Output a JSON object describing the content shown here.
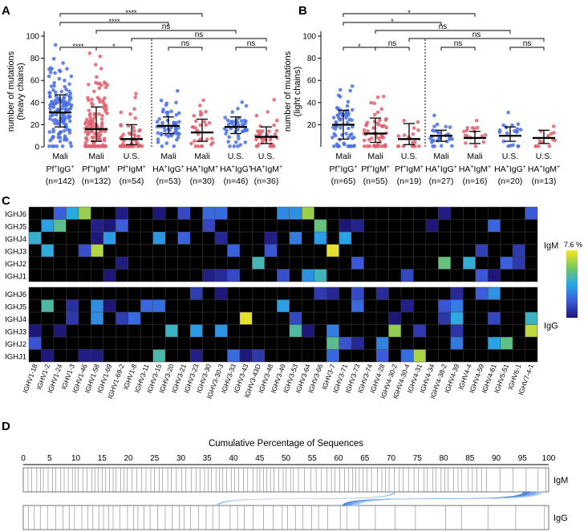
{
  "panels": {
    "A": "A",
    "B": "B",
    "C": "C",
    "D": "D"
  },
  "colors": {
    "blue": "#4a6fe3",
    "red": "#e0626f",
    "black": "#000000",
    "gray": "#7a7a7a"
  },
  "chart_data": [
    {
      "id": "A",
      "type": "scatter",
      "ylabel": "number of mutations",
      "ylabel2": "(heavy chains)",
      "ylim": [
        0,
        100
      ],
      "yticks": [
        "0",
        "20",
        "40",
        "60",
        "80",
        "100"
      ],
      "groups": [
        {
          "loc": "Mali",
          "type": "Pf+IgG+",
          "pre": "Pf",
          "sup1": "+",
          "mid": "IgG",
          "sup2": "+",
          "n": "(n=142)",
          "color": "blue",
          "median": 31,
          "q1": 18,
          "q3": 47
        },
        {
          "loc": "Mali",
          "type": "Pf+IgM+",
          "pre": "Pf",
          "sup1": "+",
          "mid": "IgM",
          "sup2": "+",
          "n": "(n=132)",
          "color": "red",
          "median": 16,
          "q1": 5,
          "q3": 36
        },
        {
          "loc": "U.S.",
          "type": "Pf+IgM+",
          "pre": "Pf",
          "sup1": "+",
          "mid": "IgM",
          "sup2": "+",
          "n": "(n=54)",
          "color": "red",
          "median": 7,
          "q1": 2,
          "q3": 20
        },
        {
          "loc": "Mali",
          "type": "HA+IgG+",
          "pre": "HA",
          "sup1": "+",
          "mid": "IgG",
          "sup2": "+",
          "n": "(n=53)",
          "color": "blue",
          "median": 19,
          "q1": 12,
          "q3": 27
        },
        {
          "loc": "Mali",
          "type": "HA+IgM+",
          "pre": "HA",
          "sup1": "+",
          "mid": "IgM",
          "sup2": "+",
          "n": "(n=30)",
          "color": "red",
          "median": 13,
          "q1": 5,
          "q3": 25
        },
        {
          "loc": "U.S.",
          "type": "HA+IgG+",
          "pre": "HA",
          "sup1": "+",
          "mid": "IgG",
          "sup2": "+",
          "n": "(n=46)",
          "color": "blue",
          "median": 18,
          "q1": 12,
          "q3": 27
        },
        {
          "loc": "U.S.",
          "type": "HA+IgM+",
          "pre": "HA",
          "sup1": "+",
          "mid": "IgM",
          "sup2": "+",
          "n": "(n=36)",
          "color": "red",
          "median": 9,
          "q1": 3,
          "q3": 18
        }
      ],
      "brackets": [
        {
          "from": 0,
          "to": 4,
          "label": "****",
          "level": 4
        },
        {
          "from": 0,
          "to": 3,
          "label": "****",
          "level": 3
        },
        {
          "from": 1,
          "to": 5,
          "label": "ns",
          "level": 2
        },
        {
          "from": 2,
          "to": 6,
          "label": "ns",
          "level": 1
        },
        {
          "from": 0,
          "to": 1,
          "label": "****",
          "level": 0
        },
        {
          "from": 1,
          "to": 2,
          "label": "*",
          "level": 0
        },
        {
          "from": 3,
          "to": 4,
          "label": "ns",
          "level": 0
        },
        {
          "from": 5,
          "to": 6,
          "label": "ns",
          "level": 0
        }
      ]
    },
    {
      "id": "B",
      "type": "scatter",
      "ylabel": "number of mutations",
      "ylabel2": "(light chains)",
      "ylim": [
        0,
        100
      ],
      "yticks": [
        "20",
        "40",
        "60",
        "80",
        "100"
      ],
      "groups": [
        {
          "loc": "Mali",
          "type": "Pf+IgG+",
          "pre": "Pf",
          "sup1": "+",
          "mid": "IgG",
          "sup2": "+",
          "n": "(n=65)",
          "color": "blue",
          "median": 20,
          "q1": 7,
          "q3": 33
        },
        {
          "loc": "Mali",
          "type": "Pf+IgM+",
          "pre": "Pf",
          "sup1": "+",
          "mid": "IgM",
          "sup2": "+",
          "n": "(n=55)",
          "color": "red",
          "median": 12,
          "q1": 4,
          "q3": 26
        },
        {
          "loc": "U.S.",
          "type": "Pf+IgM+",
          "pre": "Pf",
          "sup1": "+",
          "mid": "IgM",
          "sup2": "+",
          "n": "(n=19)",
          "color": "red",
          "median": 7,
          "q1": 2,
          "q3": 21
        },
        {
          "loc": "Mali",
          "type": "HA+IgG+",
          "pre": "HA",
          "sup1": "+",
          "mid": "IgG",
          "sup2": "+",
          "n": "(n=27)",
          "color": "blue",
          "median": 10,
          "q1": 5,
          "q3": 15
        },
        {
          "loc": "Mali",
          "type": "HA+IgM+",
          "pre": "HA",
          "sup1": "+",
          "mid": "IgM",
          "sup2": "+",
          "n": "(n=16)",
          "color": "red",
          "median": 8,
          "q1": 3,
          "q3": 14
        },
        {
          "loc": "U.S.",
          "type": "HA+IgG+",
          "pre": "HA",
          "sup1": "+",
          "mid": "IgG",
          "sup2": "+",
          "n": "(n=20)",
          "color": "blue",
          "median": 10,
          "q1": 5,
          "q3": 18
        },
        {
          "loc": "U.S.",
          "type": "HA+IgM+",
          "pre": "HA",
          "sup1": "+",
          "mid": "IgM",
          "sup2": "+",
          "n": "(n=13)",
          "color": "red",
          "median": 8,
          "q1": 3,
          "q3": 15
        }
      ],
      "brackets": [
        {
          "from": 0,
          "to": 4,
          "label": "*",
          "level": 4
        },
        {
          "from": 0,
          "to": 3,
          "label": "*",
          "level": 3
        },
        {
          "from": 1,
          "to": 5,
          "label": "ns",
          "level": 2
        },
        {
          "from": 2,
          "to": 6,
          "label": "ns",
          "level": 1
        },
        {
          "from": 0,
          "to": 1,
          "label": "*",
          "level": 0
        },
        {
          "from": 1,
          "to": 2,
          "label": "ns",
          "level": 0
        },
        {
          "from": 3,
          "to": 4,
          "label": "ns",
          "level": 0
        },
        {
          "from": 5,
          "to": 6,
          "label": "ns",
          "level": 0
        }
      ]
    },
    {
      "id": "C",
      "type": "heatmap",
      "colorbar_max": "7.6 %",
      "rows_igm": [
        "IGHJ6",
        "IGHJ5",
        "IGHJ4",
        "IGHJ3",
        "IGHJ2",
        "IGHJ1"
      ],
      "rows_igg": [
        "IGHJ6",
        "IGHJ5",
        "IGHJ4",
        "IGHJ3",
        "IGHJ2",
        "IGHJ1"
      ],
      "label_igm": "IgM",
      "label_igg": "IgG",
      "columns": [
        "IGHV1-18",
        "IGHV1-2",
        "IGHV1-24",
        "IGHV1-3",
        "IGHV1-46",
        "IGHV1-58",
        "IGHV1-69",
        "IGHV1-69-2",
        "IGHV1-8",
        "IGHV3-11",
        "IGHV3-15",
        "IGHV3-20",
        "IGHV3-21",
        "IGHV3-23",
        "IGHV3-30",
        "IGHV3-30-3",
        "IGHV3-33",
        "IGHV3-43",
        "IGHV3-43D",
        "IGHV3-48",
        "IGHV3-49",
        "IGHV3-53",
        "IGHV3-64",
        "IGHV3-66",
        "IGHV3-7",
        "IGHV3-71",
        "IGHV3-73",
        "IGHV3-74",
        "IGHV4-28",
        "IGHV4-30-2",
        "IGHV4-30-4",
        "IGHV4-31",
        "IGHV4-34",
        "IGHV4-38-2",
        "IGHV4-39",
        "IGHV4-4",
        "IGHV4-59",
        "IGHV4-61",
        "IGHV5-51",
        "IGHV6-1",
        "IGHV7-4-1"
      ]
    },
    {
      "id": "D",
      "type": "bar",
      "title": "Cumulative Percentage of Sequences",
      "xticks": [
        "0",
        "5",
        "10",
        "15",
        "20",
        "25",
        "30",
        "35",
        "40",
        "45",
        "50",
        "55",
        "60",
        "65",
        "70",
        "75",
        "80",
        "85",
        "90",
        "95",
        "100"
      ],
      "label_top": "IgM",
      "label_bottom": "IgG"
    }
  ]
}
